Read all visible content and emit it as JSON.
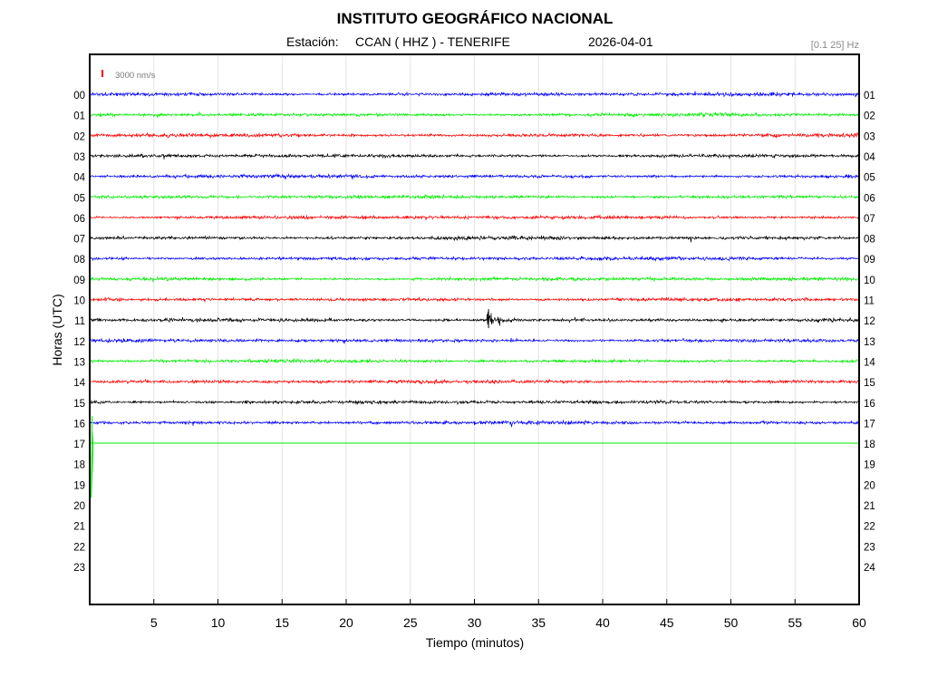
{
  "header": {
    "title": "INSTITUTO GEOGRÁFICO NACIONAL",
    "station_label": "Estación:",
    "station": "CCAN ( HHZ ) - TENERIFE",
    "date": "2026-04-01",
    "filter": "[0.1 25] Hz"
  },
  "scale": {
    "label": "3000 nm/s",
    "color": "#ff0000"
  },
  "chart_data": {
    "type": "line",
    "title": "INSTITUTO GEOGRÁFICO NACIONAL",
    "xlabel": "Tiempo (minutos)",
    "ylabel": "Horas (UTC)",
    "xlim": [
      0,
      60
    ],
    "x_ticks": [
      5,
      10,
      15,
      20,
      25,
      30,
      35,
      40,
      45,
      50,
      55,
      60
    ],
    "grid": true,
    "left_tick_labels": [
      "00",
      "01",
      "02",
      "03",
      "04",
      "05",
      "06",
      "07",
      "08",
      "09",
      "10",
      "11",
      "12",
      "13",
      "14",
      "15",
      "16",
      "17",
      "18",
      "19",
      "20",
      "21",
      "22",
      "23"
    ],
    "right_tick_labels": [
      "01",
      "02",
      "03",
      "04",
      "05",
      "06",
      "07",
      "08",
      "09",
      "10",
      "11",
      "12",
      "13",
      "14",
      "15",
      "16",
      "17",
      "18",
      "19",
      "20",
      "21",
      "22",
      "23",
      "24"
    ],
    "trace_colors": [
      "#0000ff",
      "#00ee00",
      "#ff0000",
      "#000000"
    ],
    "series": [
      {
        "hour": 0,
        "end_minute": 60
      },
      {
        "hour": 1,
        "end_minute": 60
      },
      {
        "hour": 2,
        "end_minute": 60
      },
      {
        "hour": 3,
        "end_minute": 60
      },
      {
        "hour": 4,
        "end_minute": 60
      },
      {
        "hour": 5,
        "end_minute": 60
      },
      {
        "hour": 6,
        "end_minute": 60
      },
      {
        "hour": 7,
        "end_minute": 60
      },
      {
        "hour": 8,
        "end_minute": 60
      },
      {
        "hour": 9,
        "end_minute": 60
      },
      {
        "hour": 10,
        "end_minute": 60
      },
      {
        "hour": 11,
        "end_minute": 60
      },
      {
        "hour": 12,
        "end_minute": 60
      },
      {
        "hour": 13,
        "end_minute": 60
      },
      {
        "hour": 14,
        "end_minute": 60
      },
      {
        "hour": 15,
        "end_minute": 60
      },
      {
        "hour": 16,
        "end_minute": 60
      },
      {
        "hour": 17,
        "end_minute": 60,
        "flat": true
      }
    ],
    "events": [
      {
        "hour": 11,
        "minute": 31.1,
        "peak_scale": 1.8
      },
      {
        "hour": 17,
        "minute": 0.05,
        "peak_scale": 5.5
      }
    ]
  }
}
